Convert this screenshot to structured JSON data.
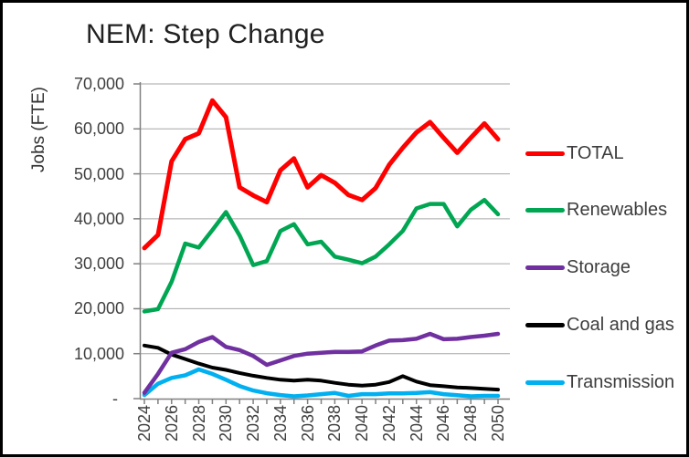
{
  "title": "NEM: Step Change",
  "y_axis": {
    "label": "Jobs (FTE)",
    "tick_labels": [
      "70,000",
      "60,000",
      "50,000",
      "40,000",
      "30,000",
      "20,000",
      "10,000",
      "-"
    ],
    "tick_values": [
      70000,
      60000,
      50000,
      40000,
      30000,
      20000,
      10000,
      0
    ]
  },
  "x_axis": {
    "tick_labels": [
      "2024",
      "2026",
      "2028",
      "2030",
      "2032",
      "2034",
      "2036",
      "2038",
      "2040",
      "2042",
      "2044",
      "2046",
      "2048",
      "2050"
    ]
  },
  "legend": [
    {
      "label": "TOTAL",
      "color": "#fe0000"
    },
    {
      "label": "Renewables",
      "color": "#00a651"
    },
    {
      "label": "Storage",
      "color": "#7030a0"
    },
    {
      "label": "Coal and gas",
      "color": "#000000"
    },
    {
      "label": "Transmission",
      "color": "#00b0f0"
    }
  ],
  "colors": {
    "gridline": "#a6a6a6",
    "axis": "#808080",
    "title_text": "#212121",
    "tick_text": "#3f3f3f"
  },
  "chart_data": {
    "type": "line",
    "title": "NEM: Step Change",
    "xlabel": "",
    "ylabel": "Jobs (FTE)",
    "ylim": [
      0,
      70000
    ],
    "grid": true,
    "legend_position": "right",
    "x": [
      2024,
      2025,
      2026,
      2027,
      2028,
      2029,
      2030,
      2031,
      2032,
      2033,
      2034,
      2035,
      2036,
      2037,
      2038,
      2039,
      2040,
      2041,
      2042,
      2043,
      2044,
      2045,
      2046,
      2047,
      2048,
      2049,
      2050
    ],
    "series": [
      {
        "name": "TOTAL",
        "color": "#fe0000",
        "stroke_width": 5,
        "values": [
          33500,
          36400,
          52800,
          57700,
          59000,
          66300,
          62600,
          47000,
          45200,
          43700,
          50800,
          53400,
          47000,
          49700,
          48000,
          45300,
          44200,
          46800,
          52000,
          55800,
          59200,
          61500,
          58000,
          54700,
          58000,
          61200,
          57700
        ]
      },
      {
        "name": "Renewables",
        "color": "#00a651",
        "stroke_width": 4.5,
        "values": [
          19400,
          19900,
          26000,
          34500,
          33600,
          37500,
          41500,
          36300,
          29700,
          30600,
          37300,
          38800,
          34300,
          34900,
          31600,
          30900,
          30100,
          31600,
          34300,
          37300,
          42300,
          43300,
          43300,
          38300,
          42000,
          44200,
          41000
        ]
      },
      {
        "name": "Storage",
        "color": "#7030a0",
        "stroke_width": 4.5,
        "values": [
          1300,
          5500,
          10200,
          11000,
          12600,
          13700,
          11500,
          10800,
          9500,
          7500,
          8500,
          9500,
          10000,
          10200,
          10400,
          10400,
          10500,
          11800,
          12900,
          13000,
          13300,
          14400,
          13200,
          13300,
          13700,
          14000,
          14400
        ]
      },
      {
        "name": "Coal and gas",
        "color": "#000000",
        "stroke_width": 4,
        "values": [
          11800,
          11300,
          9800,
          8800,
          7800,
          6900,
          6400,
          5700,
          5100,
          4600,
          4200,
          4000,
          4200,
          4000,
          3500,
          3100,
          2900,
          3100,
          3700,
          5000,
          3800,
          3000,
          2750,
          2500,
          2350,
          2200,
          2000
        ]
      },
      {
        "name": "Transmission",
        "color": "#00b0f0",
        "stroke_width": 4.5,
        "values": [
          800,
          3300,
          4600,
          5200,
          6500,
          5500,
          4200,
          2800,
          1800,
          1200,
          800,
          500,
          700,
          1000,
          1250,
          600,
          1000,
          1000,
          1150,
          1150,
          1250,
          1450,
          1000,
          750,
          500,
          600,
          600
        ]
      }
    ]
  }
}
